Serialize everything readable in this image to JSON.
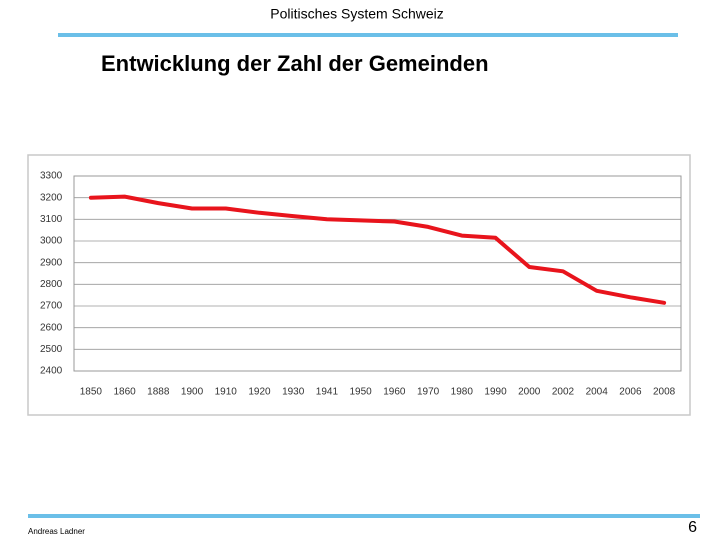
{
  "header": {
    "title": "Politisches System Schweiz"
  },
  "footer": {
    "author": "Andreas Ladner",
    "page": "6"
  },
  "chart_data": {
    "type": "line",
    "title": "Entwicklung der Zahl der Gemeinden",
    "categories": [
      "1850",
      "1860",
      "1888",
      "1900",
      "1910",
      "1920",
      "1930",
      "1941",
      "1950",
      "1960",
      "1970",
      "1980",
      "1990",
      "2000",
      "2002",
      "2004",
      "2006",
      "2008"
    ],
    "values": [
      3200,
      3205,
      3175,
      3150,
      3150,
      3130,
      3115,
      3100,
      3095,
      3090,
      3065,
      3025,
      3015,
      2880,
      2860,
      2770,
      2740,
      2715
    ],
    "color": "#e8141c",
    "ylim": [
      2400,
      3300
    ],
    "yticks": [
      2400,
      2500,
      2600,
      2700,
      2800,
      2900,
      3000,
      3100,
      3200,
      3300
    ],
    "grid": true
  }
}
